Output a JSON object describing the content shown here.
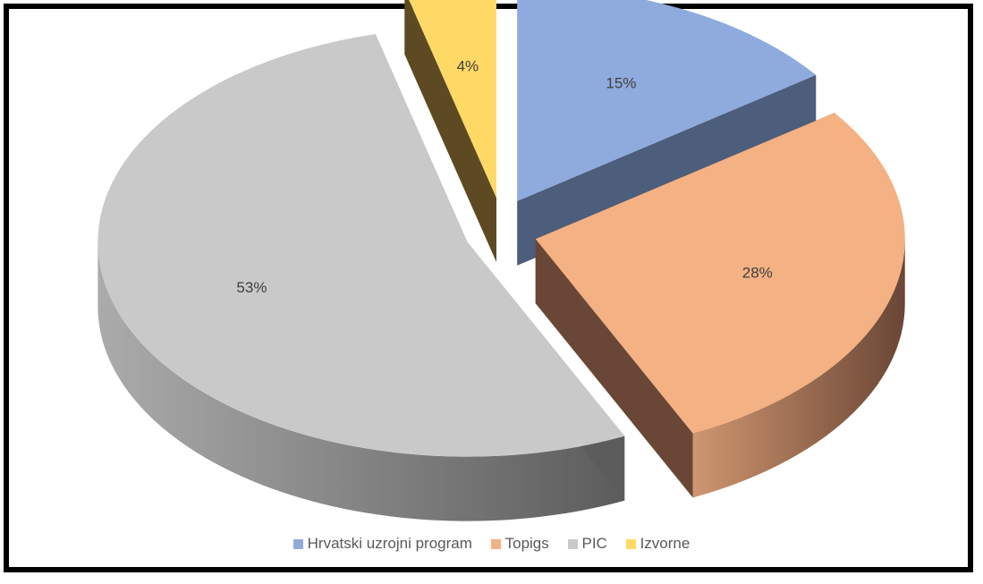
{
  "chart_data": {
    "type": "pie",
    "three_d": true,
    "exploded": true,
    "categories": [
      "Hrvatski uzrojni program",
      "Topigs",
      "PIC",
      "Izvorne"
    ],
    "values": [
      15,
      28,
      53,
      4
    ],
    "labels": [
      "15%",
      "28%",
      "53%",
      "4%"
    ],
    "colors": [
      "#8faadc",
      "#f4b183",
      "#c9c9c9",
      "#ffd966"
    ],
    "side_colors": [
      "#4c5e7c",
      "#6a4636",
      "#5c5c5c",
      "#5e4a22"
    ],
    "legend_position": "bottom"
  }
}
